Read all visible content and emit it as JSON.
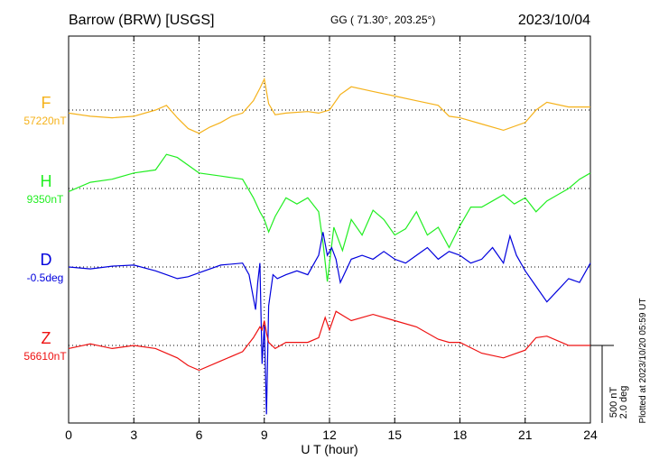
{
  "header": {
    "station": "Barrow (BRW)  [USGS]",
    "coords": "GG ( 71.30°, 203.25°)",
    "date": "2023/10/04"
  },
  "footer": {
    "plotted": "Plotted at 2023/10/20 05:59 UT"
  },
  "colors": {
    "F": "#f5b21b",
    "H": "#22ee22",
    "D": "#0000dd",
    "Z": "#ee1111",
    "grid": "#000000"
  },
  "chart_data": {
    "type": "line",
    "title": "",
    "xlabel": "U T (hour)",
    "xlim": [
      0,
      24
    ],
    "xticks": [
      "0",
      "3",
      "6",
      "9",
      "12",
      "15",
      "18",
      "21",
      "24"
    ],
    "grid": true,
    "scale": {
      "nT_label": "500 nT",
      "deg_label": "2.0 deg",
      "nT_per_bar": 500,
      "deg_per_bar": 2.0
    },
    "series": [
      {
        "key": "F",
        "name": "F",
        "baseline_label": "57220nT",
        "unit": "nT",
        "baseline": 57220,
        "t": [
          0,
          1,
          2,
          3,
          4,
          4.5,
          5,
          5.5,
          6,
          6.5,
          7,
          7.5,
          8,
          8.5,
          8.8,
          9.0,
          9.2,
          9.5,
          10,
          11,
          11.5,
          12,
          12.5,
          13,
          14,
          15,
          16,
          17,
          17.5,
          18,
          19,
          20,
          21,
          21.5,
          22,
          23,
          24
        ],
        "v": [
          -20,
          -40,
          -50,
          -40,
          0,
          30,
          -50,
          -120,
          -150,
          -110,
          -80,
          -40,
          -20,
          60,
          140,
          200,
          40,
          -30,
          -20,
          -10,
          -20,
          0,
          100,
          150,
          120,
          90,
          60,
          30,
          -40,
          -50,
          -90,
          -130,
          -80,
          0,
          50,
          20,
          20
        ]
      },
      {
        "key": "H",
        "name": "H",
        "baseline_label": "9350nT",
        "unit": "nT",
        "baseline": 9350,
        "t": [
          0,
          1,
          2,
          3,
          4,
          4.5,
          5,
          6,
          7,
          8,
          8.5,
          8.8,
          9.0,
          9.2,
          9.5,
          10,
          10.5,
          11,
          11.5,
          11.7,
          11.9,
          12.2,
          12.6,
          13,
          13.5,
          14,
          14.5,
          15,
          15.5,
          16,
          16.5,
          17,
          17.5,
          18,
          18.5,
          19,
          19.5,
          20,
          20.5,
          21,
          21.5,
          22,
          22.5,
          23,
          23.5,
          24
        ],
        "v": [
          -20,
          40,
          60,
          100,
          120,
          220,
          200,
          100,
          80,
          60,
          -60,
          -150,
          -200,
          -280,
          -180,
          -60,
          -100,
          -60,
          -150,
          -350,
          -600,
          -250,
          -400,
          -200,
          -300,
          -140,
          -200,
          -300,
          -260,
          -150,
          -300,
          -250,
          -380,
          -240,
          -120,
          -120,
          -80,
          -40,
          -100,
          -60,
          -150,
          -80,
          -40,
          0,
          60,
          100
        ]
      },
      {
        "key": "D",
        "name": "D",
        "baseline_label": "-0.5deg",
        "unit": "deg",
        "baseline": -0.5,
        "t": [
          0,
          1,
          2,
          3,
          4,
          4.5,
          5,
          5.5,
          6,
          7,
          8,
          8.3,
          8.5,
          8.6,
          8.7,
          8.8,
          8.9,
          9.0,
          9.1,
          9.2,
          9.4,
          9.6,
          10,
          10.5,
          11,
          11.5,
          11.7,
          11.9,
          12.1,
          12.3,
          12.5,
          13,
          13.5,
          14,
          14.5,
          15,
          15.5,
          16,
          16.5,
          17,
          17.5,
          18,
          18.5,
          19,
          19.5,
          20,
          20.3,
          20.6,
          21,
          21.5,
          22,
          22.5,
          23,
          23.5,
          24
        ],
        "v": [
          0,
          -0.05,
          0.02,
          0.05,
          -0.1,
          -0.2,
          -0.3,
          -0.25,
          -0.15,
          0.05,
          0.1,
          -0.2,
          -0.8,
          -1.1,
          -0.4,
          0.1,
          -2.5,
          -1.5,
          -3.8,
          -1.0,
          -0.2,
          -0.3,
          -0.2,
          -0.1,
          -0.2,
          0.3,
          0.9,
          0.3,
          0.5,
          0.2,
          -0.4,
          0.2,
          0.3,
          0.2,
          0.4,
          0.2,
          0.1,
          0.3,
          0.5,
          0.2,
          0.4,
          0.3,
          0.1,
          0.2,
          0.5,
          0.1,
          0.8,
          0.3,
          -0.1,
          -0.5,
          -0.9,
          -0.6,
          -0.3,
          -0.4,
          0.1
        ]
      },
      {
        "key": "Z",
        "name": "Z",
        "baseline_label": "56610nT",
        "unit": "nT",
        "baseline": 56610,
        "t": [
          0,
          1,
          2,
          3,
          4,
          5,
          5.5,
          6,
          7,
          8,
          8.5,
          8.8,
          8.9,
          9.0,
          9.1,
          9.2,
          9.5,
          10,
          11,
          11.5,
          11.8,
          12,
          12.3,
          13,
          14,
          15,
          16,
          17,
          17.5,
          18,
          19,
          20,
          21,
          21.5,
          22,
          23,
          24
        ],
        "v": [
          -20,
          10,
          -20,
          0,
          -20,
          -80,
          -130,
          -160,
          -100,
          -40,
          50,
          120,
          100,
          160,
          80,
          20,
          -20,
          20,
          20,
          50,
          180,
          100,
          220,
          160,
          200,
          160,
          120,
          40,
          20,
          20,
          -50,
          -80,
          -30,
          50,
          60,
          0,
          0
        ]
      }
    ]
  }
}
